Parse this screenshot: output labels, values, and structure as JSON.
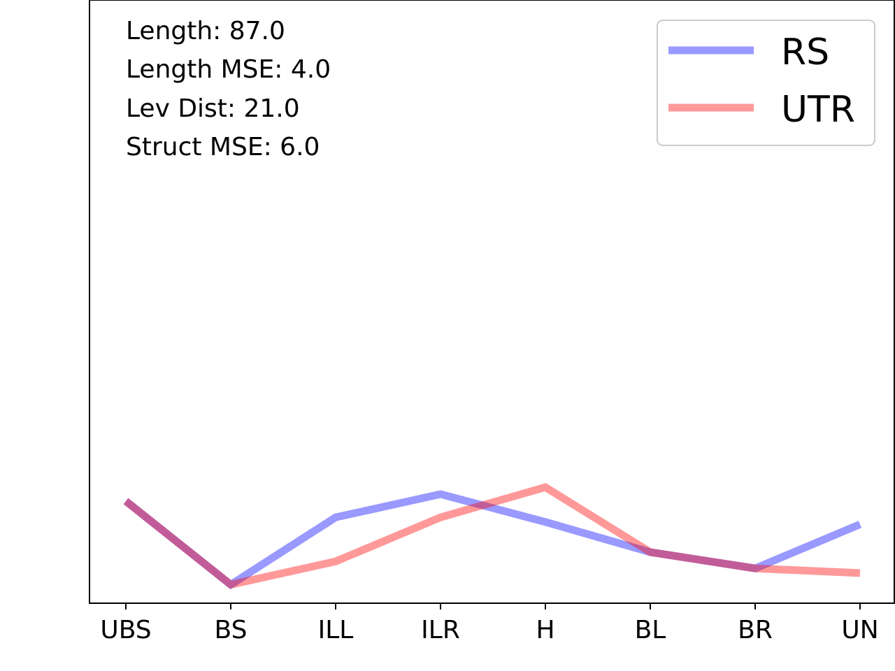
{
  "chart_data": {
    "type": "line",
    "categories": [
      "UBS",
      "BS",
      "ILL",
      "ILR",
      "H",
      "BL",
      "BR",
      "UN"
    ],
    "series": [
      {
        "name": "RS",
        "color": "#0000ff",
        "values": [
          25.0,
          7.0,
          21.5,
          26.5,
          20.5,
          14.0,
          10.5,
          20.0
        ]
      },
      {
        "name": "UTR",
        "color": "#ff0000",
        "values": [
          25.0,
          7.0,
          12.0,
          21.5,
          28.0,
          14.0,
          10.5,
          9.5
        ]
      }
    ],
    "ylim": [
      3.0,
      133.0
    ],
    "annotations": [
      "Length: 87.0",
      "Length MSE: 4.0",
      "Lev Dist: 21.0",
      "Struct MSE: 6.0"
    ],
    "legend_position": "top-right",
    "y_ticks_visible": false,
    "grid": false
  }
}
